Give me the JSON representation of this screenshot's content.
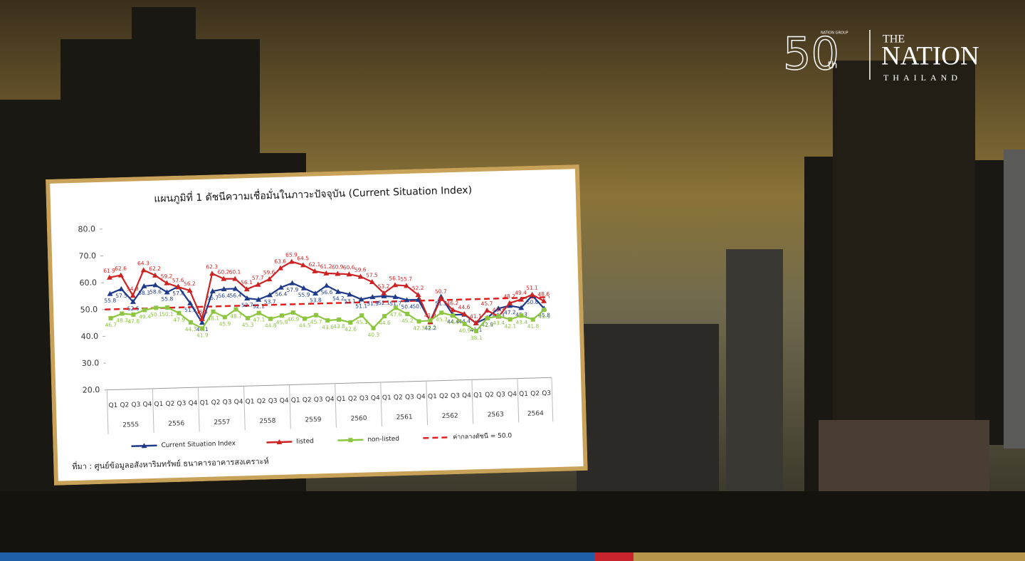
{
  "chart_data": {
    "type": "line",
    "title": "แผนภูมิที่ 1 ดัชนีความเชื่อมั่นในภาวะปัจจุบัน (Current Situation Index)",
    "categories": [
      "Q1",
      "Q2",
      "Q3",
      "Q4",
      "Q1",
      "Q2",
      "Q3",
      "Q4",
      "Q1",
      "Q2",
      "Q3",
      "Q4",
      "Q1",
      "Q2",
      "Q3",
      "Q4",
      "Q1",
      "Q2",
      "Q3",
      "Q4",
      "Q1",
      "Q2",
      "Q3",
      "Q4",
      "Q1",
      "Q2",
      "Q3",
      "Q4",
      "Q1",
      "Q2",
      "Q3",
      "Q4",
      "Q1",
      "Q2",
      "Q3",
      "Q4",
      "Q1",
      "Q2",
      "Q3"
    ],
    "years": [
      "2555",
      "2556",
      "2557",
      "2558",
      "2559",
      "2560",
      "2561",
      "2562",
      "2563",
      "2564"
    ],
    "series": [
      {
        "name": "Current Situation Index",
        "color": "#1f3a8a",
        "marker": "triangle",
        "values": [
          55.8,
          57.5,
          52.6,
          58.3,
          58.6,
          55.8,
          57.8,
          51.5,
          44.1,
          55.7,
          56.4,
          56.4,
          52.7,
          52.1,
          53.7,
          56.4,
          57.9,
          55.9,
          53.8,
          56.6,
          54.2,
          53.1,
          51.1,
          51.9,
          52.1,
          51.7,
          50.4,
          50.4,
          42.2,
          51.3,
          44.4,
          44.4,
          41.1,
          42.9,
          46.3,
          47.2,
          46.3,
          50.8,
          45.8
        ]
      },
      {
        "name": "listed",
        "color": "#cc2222",
        "marker": "triangle",
        "values": [
          61.9,
          62.6,
          54.9,
          64.3,
          62.2,
          59.2,
          57.6,
          56.2,
          45.5,
          62.3,
          60.2,
          60.1,
          56.1,
          57.7,
          59.6,
          63.6,
          65.9,
          64.5,
          62.1,
          61.2,
          60.9,
          60.6,
          59.6,
          57.5,
          53.2,
          56.1,
          55.7,
          52.2,
          41.9,
          50.7,
          46.2,
          44.6,
          41.1,
          45.7,
          43.3,
          48.2,
          49.4,
          51.1,
          48.6
        ]
      },
      {
        "name": "non-listed",
        "color": "#8cc63f",
        "marker": "square",
        "values": [
          46.7,
          48.3,
          47.8,
          49.4,
          50.1,
          50.1,
          47.9,
          44.3,
          41.9,
          48.1,
          45.9,
          48.7,
          45.3,
          47.1,
          44.8,
          45.9,
          46.9,
          44.5,
          45.7,
          43.6,
          43.8,
          42.6,
          45.1,
          40.3,
          44.6,
          47.6,
          45.2,
          42.3,
          42.5,
          45.3,
          44.1,
          40.9,
          38.1,
          42.8,
          43.4,
          42.1,
          43.4,
          41.8,
          45.3
        ]
      }
    ],
    "reference": {
      "name": "ค่ากลางดัชนี = 50.0",
      "value": 50,
      "color": "#e02020"
    },
    "ylim": [
      20,
      80
    ],
    "yticks": [
      {
        "value": 20,
        "label": "20.0"
      },
      {
        "value": 30,
        "label": "30.0"
      },
      {
        "value": 40,
        "label": "40.0"
      },
      {
        "value": 50,
        "label": "50.0"
      },
      {
        "value": 60,
        "label": "60.0"
      },
      {
        "value": 70,
        "label": "70.0"
      },
      {
        "value": 80,
        "label": "80.0"
      }
    ],
    "source": "ที่มา : ศูนย์ข้อมูลอสังหาริมทรัพย์ ธนาคารอาคารสงเคราะห์"
  },
  "branding": {
    "anniversary": "50",
    "suffix": "th",
    "group": "NATION GROUP",
    "the": "THE",
    "nation": "NATION",
    "country": "THAILAND"
  }
}
